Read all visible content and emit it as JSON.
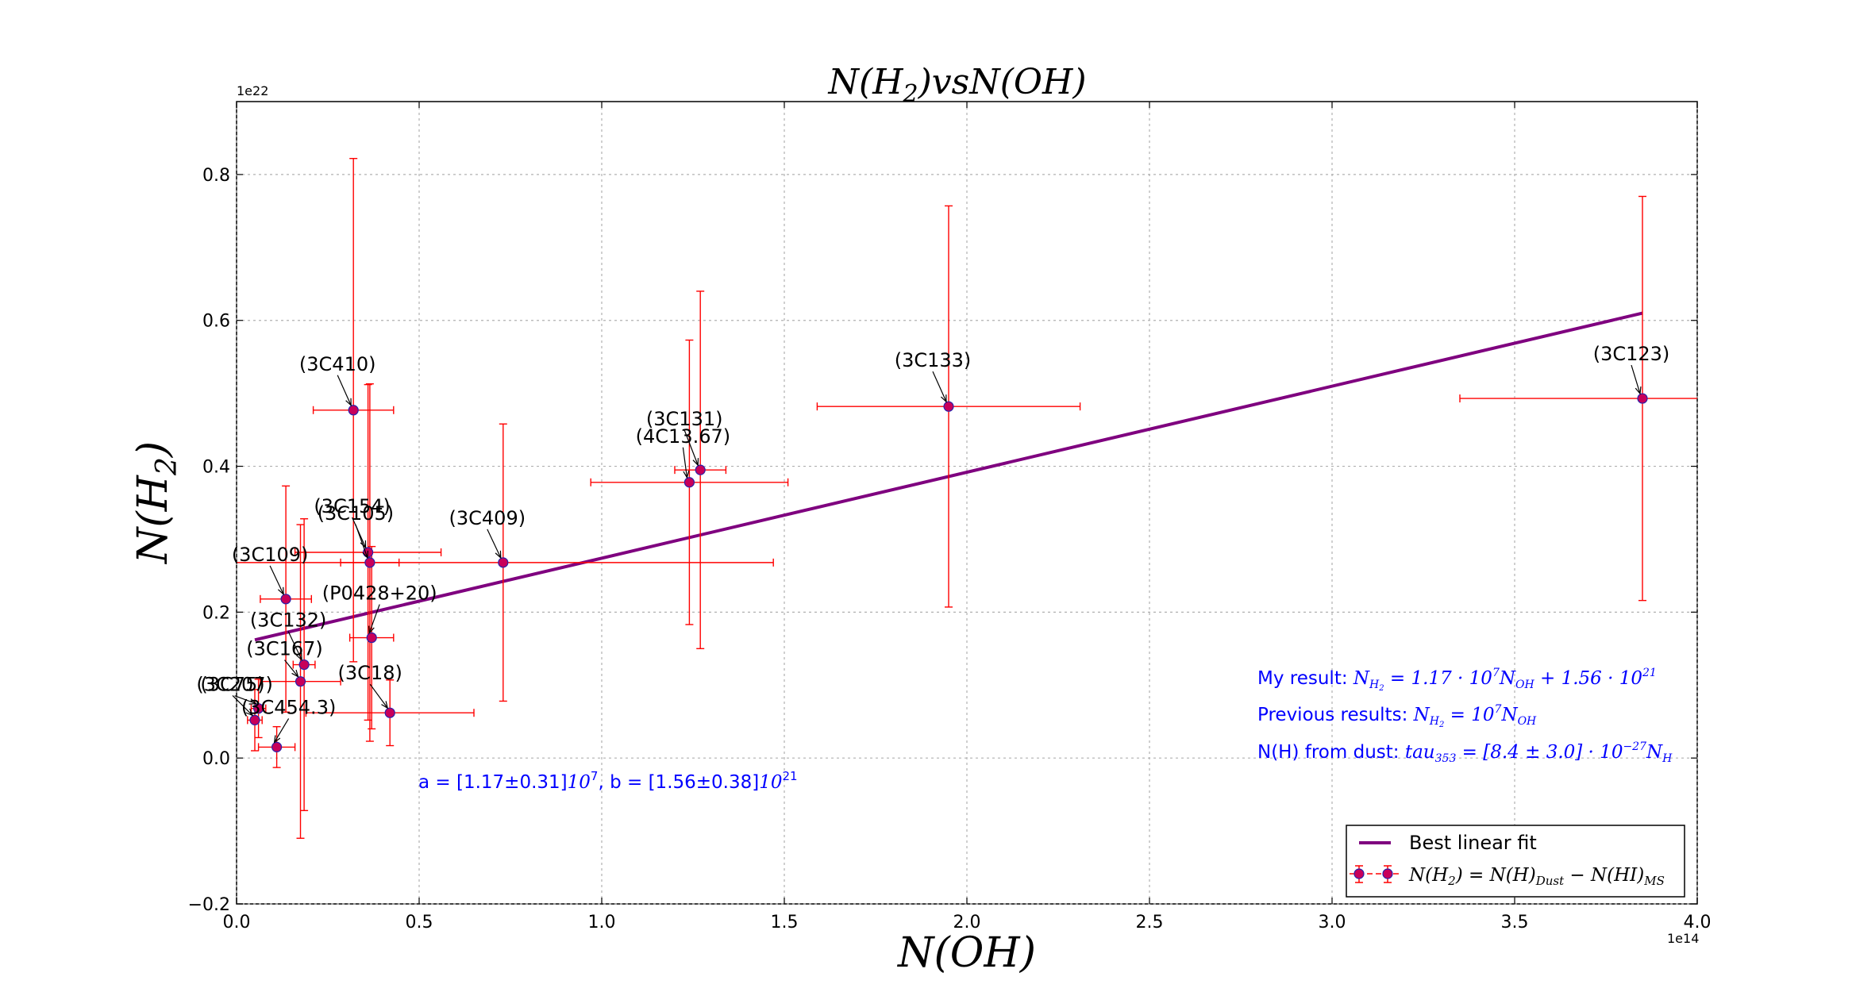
{
  "chart_data": {
    "type": "scatter",
    "title": "N(H₂)vsN(OH)",
    "xlabel": "N(OH)",
    "ylabel": "N(H₂)",
    "x_offset_label": "1e14",
    "y_offset_label": "1e22",
    "xlim": [
      0.0,
      4.0
    ],
    "ylim": [
      -0.2,
      0.9
    ],
    "xticks": [
      "0.0",
      "0.5",
      "1.0",
      "1.5",
      "2.0",
      "2.5",
      "3.0",
      "3.5",
      "4.0"
    ],
    "yticks": [
      "−0.2",
      "0.0",
      "0.2",
      "0.4",
      "0.6",
      "0.8"
    ],
    "grid": true,
    "legend_position": "lower-right",
    "legend": {
      "fit_label": "Best linear fit",
      "data_label": "N(H₂) = N(H)_Dust − N(HI)_MS"
    },
    "fit_line": {
      "x": [
        0.05,
        3.85
      ],
      "y": [
        0.162,
        0.61
      ]
    },
    "points": [
      {
        "label": "(3C410)",
        "x": 0.32,
        "y": 0.477,
        "xerr": 0.11,
        "yerr": 0.345
      },
      {
        "label": "(3C133)",
        "x": 1.95,
        "y": 0.482,
        "xerr": 0.36,
        "yerr": 0.275
      },
      {
        "label": "(3C123)",
        "x": 3.85,
        "y": 0.493,
        "xerr": 0.5,
        "yerr": 0.277
      },
      {
        "label": "(3C131)",
        "x": 1.27,
        "y": 0.395,
        "xerr": 0.07,
        "yerr": 0.245
      },
      {
        "label": "(4C13.67)",
        "x": 1.24,
        "y": 0.378,
        "xerr": 0.27,
        "yerr": 0.195
      },
      {
        "label": "(3C154)",
        "x": 0.36,
        "y": 0.282,
        "xerr": 0.2,
        "yerr": 0.23
      },
      {
        "label": "(3C105)",
        "x": 0.365,
        "y": 0.268,
        "xerr": 0.08,
        "yerr": 0.245
      },
      {
        "label": "(3C409)",
        "x": 0.73,
        "y": 0.268,
        "xerr": 0.74,
        "yerr": 0.19
      },
      {
        "label": "(3C109)",
        "x": 0.135,
        "y": 0.218,
        "xerr": 0.07,
        "yerr": 0.155
      },
      {
        "label": "(P0428+20)",
        "x": 0.37,
        "y": 0.165,
        "xerr": 0.06,
        "yerr": 0.125
      },
      {
        "label": "(3C132)",
        "x": 0.185,
        "y": 0.128,
        "xerr": 0.03,
        "yerr": 0.2
      },
      {
        "label": "(3C167)",
        "x": 0.175,
        "y": 0.105,
        "xerr": 0.11,
        "yerr": 0.215
      },
      {
        "label": "(3C18)",
        "x": 0.42,
        "y": 0.062,
        "xerr": 0.23,
        "yerr": 0.045
      },
      {
        "label": "(3C207)",
        "x": 0.06,
        "y": 0.068,
        "xerr": 0.02,
        "yerr": 0.04
      },
      {
        "label": "(3C75)",
        "x": 0.05,
        "y": 0.052,
        "xerr": 0.02,
        "yerr": 0.042
      },
      {
        "label": "(3C454.3)",
        "x": 0.11,
        "y": 0.015,
        "xerr": 0.05,
        "yerr": 0.028
      }
    ],
    "annotations": {
      "ab_prefix": "a = [1.17±0.31]",
      "ab_exp_a": "10",
      "ab_exp_a_sup": "7",
      "ab_mid": ",  b = [1.56±0.38]",
      "ab_exp_b": "10",
      "ab_exp_b_sup": "21",
      "my_result_label": "My result: ",
      "my_result_math": "N_H₂ = 1.17·10⁷ N_OH + 1.56·10²¹",
      "prev_label": "Previous results: ",
      "prev_math": "N_H₂ = 10⁷ N_OH",
      "dust_label": "N(H) from dust: ",
      "dust_math": "tau₃₅₃ = [8.4 ± 3.0] · 10⁻²⁷ N_H"
    },
    "colors": {
      "errorbar": "#ff0000",
      "marker_face": "#c8005a",
      "marker_edge": "#2b1faa",
      "fit_line": "#7f007f",
      "annotation": "#0000ff",
      "grid": "#b0b0b0"
    }
  }
}
